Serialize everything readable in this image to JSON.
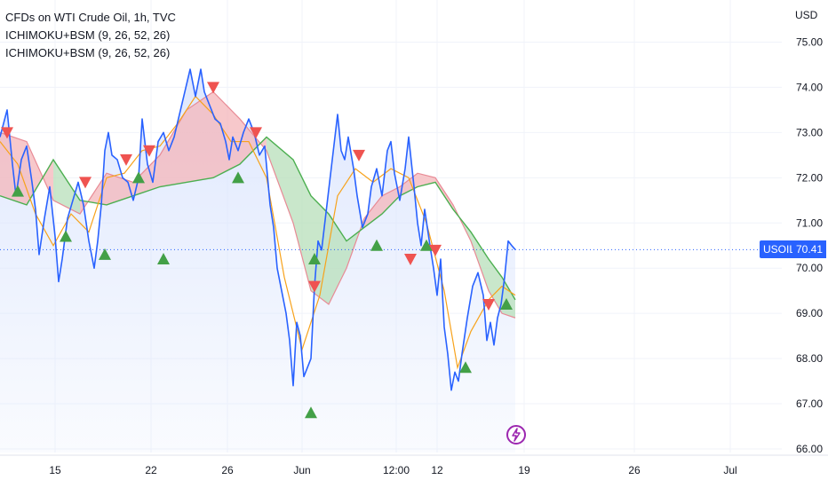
{
  "legend": {
    "title": "CFDs on WTI Crude Oil, 1h, TVC",
    "indicator_1": "ICHIMOKU+BSM (9, 26, 52, 26)",
    "indicator_2": "ICHIMOKU+BSM (9, 26, 52, 26)"
  },
  "price_tag": {
    "symbol": "USOIL",
    "value": "70.41"
  },
  "colors": {
    "price_line": "#2962ff",
    "price_fill": "#dbe5fd",
    "cloud_up": "#b7dfb9",
    "cloud_down": "#f4b6b9",
    "span_a": "#e88a95",
    "span_b": "#4caf50",
    "conversion": "#f7a21b",
    "buy_marker": "#43a047",
    "sell_marker": "#ef5350",
    "price_tag": "#2962ff",
    "bolt": "#9c27b0"
  },
  "icons": {
    "realtime": "lightning-bolt-icon",
    "buy": "triangle-up-icon",
    "sell": "triangle-down-icon"
  },
  "chart_data": {
    "type": "line",
    "title": "CFDs on WTI Crude Oil, 1h, TVC",
    "currency": "USD",
    "ylim": [
      66,
      75.5
    ],
    "y_ticks": [
      "66.00",
      "67.00",
      "68.00",
      "69.00",
      "70.00",
      "71.00",
      "72.00",
      "73.00",
      "74.00",
      "75.00"
    ],
    "x_ticks": [
      "15",
      "22",
      "26",
      "Jun",
      "12:00",
      "12",
      "19",
      "26",
      "Jul"
    ],
    "last_price": 70.41,
    "price": [
      [
        0,
        72.9
      ],
      [
        8,
        73.5
      ],
      [
        14,
        72.3
      ],
      [
        18,
        71.6
      ],
      [
        24,
        72.4
      ],
      [
        30,
        72.7
      ],
      [
        36,
        71.9
      ],
      [
        40,
        71.3
      ],
      [
        44,
        70.3
      ],
      [
        50,
        71.1
      ],
      [
        56,
        71.8
      ],
      [
        62,
        70.7
      ],
      [
        66,
        69.7
      ],
      [
        70,
        70.2
      ],
      [
        76,
        71.1
      ],
      [
        82,
        71.5
      ],
      [
        88,
        71.9
      ],
      [
        94,
        71.4
      ],
      [
        100,
        70.6
      ],
      [
        106,
        70.0
      ],
      [
        110,
        70.6
      ],
      [
        114,
        71.4
      ],
      [
        118,
        72.6
      ],
      [
        122,
        73.0
      ],
      [
        126,
        72.5
      ],
      [
        132,
        72.4
      ],
      [
        138,
        72.0
      ],
      [
        144,
        71.9
      ],
      [
        150,
        71.5
      ],
      [
        156,
        72.0
      ],
      [
        160,
        73.3
      ],
      [
        166,
        72.3
      ],
      [
        172,
        71.9
      ],
      [
        178,
        72.8
      ],
      [
        184,
        73.0
      ],
      [
        190,
        72.6
      ],
      [
        196,
        72.9
      ],
      [
        202,
        73.4
      ],
      [
        208,
        73.9
      ],
      [
        214,
        74.4
      ],
      [
        220,
        73.8
      ],
      [
        226,
        74.4
      ],
      [
        230,
        73.9
      ],
      [
        236,
        73.6
      ],
      [
        242,
        73.3
      ],
      [
        248,
        73.2
      ],
      [
        254,
        72.8
      ],
      [
        258,
        72.4
      ],
      [
        262,
        72.9
      ],
      [
        268,
        72.6
      ],
      [
        274,
        73.0
      ],
      [
        280,
        73.3
      ],
      [
        286,
        73.0
      ],
      [
        292,
        72.5
      ],
      [
        298,
        72.7
      ],
      [
        304,
        71.4
      ],
      [
        308,
        70.9
      ],
      [
        312,
        70.0
      ],
      [
        316,
        69.6
      ],
      [
        322,
        69.0
      ],
      [
        326,
        68.4
      ],
      [
        330,
        67.4
      ],
      [
        334,
        68.8
      ],
      [
        338,
        68.5
      ],
      [
        342,
        67.6
      ],
      [
        346,
        67.8
      ],
      [
        350,
        68.0
      ],
      [
        354,
        69.6
      ],
      [
        358,
        70.6
      ],
      [
        362,
        70.4
      ],
      [
        368,
        71.4
      ],
      [
        374,
        72.4
      ],
      [
        380,
        73.4
      ],
      [
        384,
        72.6
      ],
      [
        388,
        72.4
      ],
      [
        392,
        72.9
      ],
      [
        398,
        72.2
      ],
      [
        402,
        71.6
      ],
      [
        408,
        70.9
      ],
      [
        414,
        71.2
      ],
      [
        418,
        71.8
      ],
      [
        424,
        72.2
      ],
      [
        430,
        71.6
      ],
      [
        436,
        72.6
      ],
      [
        440,
        72.8
      ],
      [
        444,
        72.1
      ],
      [
        450,
        71.5
      ],
      [
        456,
        72.2
      ],
      [
        460,
        72.9
      ],
      [
        466,
        71.8
      ],
      [
        470,
        71.0
      ],
      [
        474,
        70.5
      ],
      [
        478,
        71.3
      ],
      [
        484,
        70.5
      ],
      [
        488,
        70.0
      ],
      [
        492,
        69.4
      ],
      [
        496,
        70.2
      ],
      [
        500,
        68.7
      ],
      [
        504,
        68.1
      ],
      [
        508,
        67.3
      ],
      [
        512,
        67.7
      ],
      [
        516,
        67.5
      ],
      [
        520,
        68.1
      ],
      [
        526,
        68.9
      ],
      [
        532,
        69.6
      ],
      [
        538,
        69.9
      ],
      [
        544,
        69.4
      ],
      [
        548,
        68.4
      ],
      [
        552,
        68.8
      ],
      [
        556,
        68.3
      ],
      [
        560,
        68.9
      ],
      [
        564,
        69.2
      ],
      [
        568,
        69.8
      ],
      [
        572,
        70.6
      ],
      [
        576,
        70.5
      ],
      [
        580,
        70.41
      ]
    ],
    "cloud_span_a": [
      [
        0,
        73.0
      ],
      [
        30,
        72.8
      ],
      [
        60,
        71.5
      ],
      [
        90,
        71.2
      ],
      [
        120,
        72.1
      ],
      [
        150,
        71.9
      ],
      [
        180,
        72.5
      ],
      [
        210,
        73.5
      ],
      [
        240,
        73.9
      ],
      [
        270,
        73.3
      ],
      [
        300,
        72.6
      ],
      [
        330,
        71.0
      ],
      [
        350,
        69.5
      ],
      [
        370,
        69.2
      ],
      [
        390,
        70.0
      ],
      [
        410,
        71.1
      ],
      [
        430,
        71.6
      ],
      [
        450,
        71.8
      ],
      [
        470,
        72.1
      ],
      [
        490,
        72.0
      ],
      [
        510,
        71.4
      ],
      [
        530,
        70.6
      ],
      [
        550,
        69.5
      ],
      [
        565,
        69.0
      ],
      [
        580,
        68.9
      ]
    ],
    "cloud_span_b": [
      [
        0,
        71.6
      ],
      [
        30,
        71.4
      ],
      [
        60,
        72.4
      ],
      [
        90,
        71.5
      ],
      [
        120,
        71.4
      ],
      [
        150,
        71.6
      ],
      [
        180,
        71.8
      ],
      [
        210,
        71.9
      ],
      [
        240,
        72.0
      ],
      [
        270,
        72.3
      ],
      [
        300,
        72.9
      ],
      [
        330,
        72.4
      ],
      [
        350,
        71.6
      ],
      [
        370,
        71.2
      ],
      [
        390,
        70.6
      ],
      [
        410,
        70.9
      ],
      [
        430,
        71.2
      ],
      [
        450,
        71.6
      ],
      [
        470,
        71.8
      ],
      [
        490,
        71.9
      ],
      [
        510,
        71.3
      ],
      [
        530,
        70.8
      ],
      [
        550,
        70.2
      ],
      [
        565,
        69.8
      ],
      [
        580,
        69.3
      ]
    ],
    "conversion_line": [
      [
        0,
        72.8
      ],
      [
        20,
        72.3
      ],
      [
        40,
        71.2
      ],
      [
        60,
        70.5
      ],
      [
        80,
        71.2
      ],
      [
        100,
        70.8
      ],
      [
        120,
        72.0
      ],
      [
        140,
        72.1
      ],
      [
        160,
        72.6
      ],
      [
        180,
        72.7
      ],
      [
        200,
        73.2
      ],
      [
        220,
        73.8
      ],
      [
        240,
        73.4
      ],
      [
        260,
        72.8
      ],
      [
        280,
        72.8
      ],
      [
        300,
        72.0
      ],
      [
        320,
        69.8
      ],
      [
        340,
        68.2
      ],
      [
        360,
        69.4
      ],
      [
        380,
        71.6
      ],
      [
        400,
        72.2
      ],
      [
        420,
        71.9
      ],
      [
        440,
        72.2
      ],
      [
        460,
        72.0
      ],
      [
        480,
        71.0
      ],
      [
        500,
        69.5
      ],
      [
        515,
        67.8
      ],
      [
        530,
        68.6
      ],
      [
        550,
        69.3
      ],
      [
        565,
        69.6
      ],
      [
        580,
        69.4
      ]
    ],
    "buy_signals": [
      [
        20,
        71.7
      ],
      [
        74,
        70.7
      ],
      [
        118,
        70.3
      ],
      [
        156,
        72.0
      ],
      [
        184,
        70.2
      ],
      [
        268,
        72.0
      ],
      [
        350,
        66.8
      ],
      [
        354,
        70.2
      ],
      [
        424,
        70.5
      ],
      [
        480,
        70.5
      ],
      [
        524,
        67.8
      ],
      [
        570,
        69.2
      ]
    ],
    "sell_signals": [
      [
        8,
        73.0
      ],
      [
        96,
        71.9
      ],
      [
        142,
        72.4
      ],
      [
        168,
        72.6
      ],
      [
        240,
        74.0
      ],
      [
        288,
        73.0
      ],
      [
        354,
        69.6
      ],
      [
        404,
        72.5
      ],
      [
        462,
        70.2
      ],
      [
        490,
        70.4
      ],
      [
        550,
        69.2
      ]
    ]
  }
}
